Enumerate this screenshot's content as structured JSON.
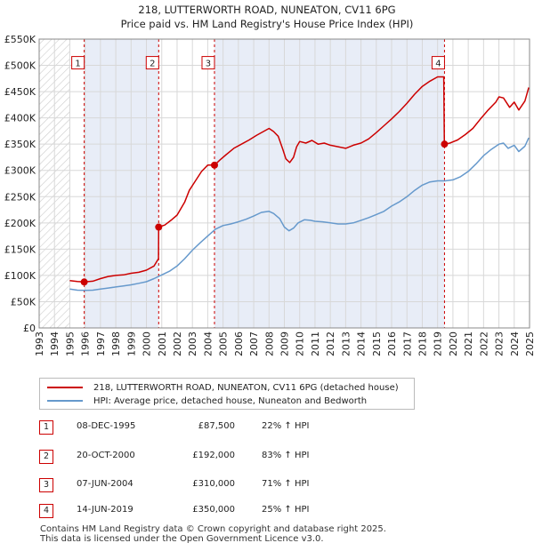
{
  "chart_data": {
    "type": "line",
    "title": "218, LUTTERWORTH ROAD, NUNEATON, CV11 6PG",
    "subtitle": "Price paid vs. HM Land Registry's House Price Index (HPI)",
    "xlim": [
      1993,
      2025
    ],
    "ylim": [
      0,
      550000
    ],
    "x_ticks": [
      "1993",
      "1994",
      "1995",
      "1996",
      "1997",
      "1998",
      "1999",
      "2000",
      "2001",
      "2002",
      "2003",
      "2004",
      "2005",
      "2006",
      "2007",
      "2008",
      "2009",
      "2010",
      "2011",
      "2012",
      "2013",
      "2014",
      "2015",
      "2016",
      "2017",
      "2018",
      "2019",
      "2020",
      "2021",
      "2022",
      "2023",
      "2024",
      "2025"
    ],
    "y_ticks": [
      {
        "value": 0,
        "label": "£0"
      },
      {
        "value": 50000,
        "label": "£50K"
      },
      {
        "value": 100000,
        "label": "£100K"
      },
      {
        "value": 150000,
        "label": "£150K"
      },
      {
        "value": 200000,
        "label": "£200K"
      },
      {
        "value": 250000,
        "label": "£250K"
      },
      {
        "value": 300000,
        "label": "£300K"
      },
      {
        "value": 350000,
        "label": "£350K"
      },
      {
        "value": 400000,
        "label": "£400K"
      },
      {
        "value": 450000,
        "label": "£450K"
      },
      {
        "value": 500000,
        "label": "£500K"
      },
      {
        "value": 550000,
        "label": "£550K"
      }
    ],
    "hatch_before": 1995.0,
    "hatch_after": 2025.0,
    "shaded_bands": [
      [
        1995.94,
        2000.8
      ],
      [
        2004.44,
        2019.45
      ]
    ],
    "series": [
      {
        "name": "218, LUTTERWORTH ROAD, NUNEATON, CV11 6PG (detached house)",
        "color": "#cc0000",
        "points": [
          [
            1995.0,
            90000
          ],
          [
            1995.5,
            88500
          ],
          [
            1995.94,
            87500
          ],
          [
            1996.5,
            89000
          ],
          [
            1997.0,
            94000
          ],
          [
            1997.5,
            98000
          ],
          [
            1998.0,
            100000
          ],
          [
            1998.5,
            101000
          ],
          [
            1999.0,
            104000
          ],
          [
            1999.5,
            106000
          ],
          [
            2000.0,
            110000
          ],
          [
            2000.5,
            118000
          ],
          [
            2000.79,
            132000
          ],
          [
            2000.8,
            192000
          ],
          [
            2001.2,
            196000
          ],
          [
            2001.6,
            205000
          ],
          [
            2002.0,
            215000
          ],
          [
            2002.5,
            240000
          ],
          [
            2002.8,
            262000
          ],
          [
            2003.2,
            280000
          ],
          [
            2003.6,
            298000
          ],
          [
            2004.0,
            310000
          ],
          [
            2004.44,
            310000
          ],
          [
            2004.8,
            320000
          ],
          [
            2005.2,
            330000
          ],
          [
            2005.7,
            342000
          ],
          [
            2006.2,
            350000
          ],
          [
            2006.7,
            358000
          ],
          [
            2007.2,
            367000
          ],
          [
            2007.7,
            375000
          ],
          [
            2008.0,
            380000
          ],
          [
            2008.3,
            374000
          ],
          [
            2008.6,
            365000
          ],
          [
            2008.9,
            340000
          ],
          [
            2009.1,
            322000
          ],
          [
            2009.35,
            315000
          ],
          [
            2009.6,
            325000
          ],
          [
            2009.8,
            345000
          ],
          [
            2010.0,
            355000
          ],
          [
            2010.4,
            352000
          ],
          [
            2010.8,
            357000
          ],
          [
            2011.2,
            350000
          ],
          [
            2011.6,
            352000
          ],
          [
            2012.0,
            348000
          ],
          [
            2012.5,
            345000
          ],
          [
            2013.0,
            342000
          ],
          [
            2013.5,
            348000
          ],
          [
            2014.0,
            352000
          ],
          [
            2014.5,
            360000
          ],
          [
            2015.0,
            372000
          ],
          [
            2015.5,
            385000
          ],
          [
            2016.0,
            398000
          ],
          [
            2016.5,
            412000
          ],
          [
            2017.0,
            428000
          ],
          [
            2017.5,
            445000
          ],
          [
            2018.0,
            460000
          ],
          [
            2018.5,
            470000
          ],
          [
            2019.0,
            478000
          ],
          [
            2019.4,
            478000
          ],
          [
            2019.44,
            350000
          ],
          [
            2019.8,
            352000
          ],
          [
            2020.3,
            358000
          ],
          [
            2020.8,
            368000
          ],
          [
            2021.3,
            380000
          ],
          [
            2021.8,
            398000
          ],
          [
            2022.3,
            415000
          ],
          [
            2022.8,
            430000
          ],
          [
            2023.0,
            440000
          ],
          [
            2023.3,
            438000
          ],
          [
            2023.7,
            420000
          ],
          [
            2024.0,
            430000
          ],
          [
            2024.3,
            415000
          ],
          [
            2024.7,
            432000
          ],
          [
            2024.95,
            458000
          ]
        ]
      },
      {
        "name": "HPI: Average price, detached house, Nuneaton and Bedworth",
        "color": "#6699cc",
        "points": [
          [
            1995.0,
            74000
          ],
          [
            1995.5,
            72000
          ],
          [
            1996.0,
            71500
          ],
          [
            1996.5,
            72000
          ],
          [
            1997.0,
            74000
          ],
          [
            1997.5,
            76000
          ],
          [
            1998.0,
            78000
          ],
          [
            1998.5,
            80000
          ],
          [
            1999.0,
            82000
          ],
          [
            1999.5,
            85000
          ],
          [
            2000.0,
            88000
          ],
          [
            2000.5,
            94000
          ],
          [
            2001.0,
            101000
          ],
          [
            2001.5,
            108000
          ],
          [
            2002.0,
            118000
          ],
          [
            2002.5,
            132000
          ],
          [
            2003.0,
            148000
          ],
          [
            2003.5,
            162000
          ],
          [
            2004.0,
            175000
          ],
          [
            2004.5,
            188000
          ],
          [
            2005.0,
            195000
          ],
          [
            2005.5,
            198000
          ],
          [
            2006.0,
            202000
          ],
          [
            2006.5,
            207000
          ],
          [
            2007.0,
            213000
          ],
          [
            2007.5,
            220000
          ],
          [
            2008.0,
            222000
          ],
          [
            2008.3,
            218000
          ],
          [
            2008.7,
            208000
          ],
          [
            2009.0,
            192000
          ],
          [
            2009.3,
            185000
          ],
          [
            2009.6,
            190000
          ],
          [
            2009.9,
            200000
          ],
          [
            2010.3,
            206000
          ],
          [
            2010.7,
            205000
          ],
          [
            2011.0,
            203000
          ],
          [
            2011.5,
            202000
          ],
          [
            2012.0,
            200000
          ],
          [
            2012.5,
            198000
          ],
          [
            2013.0,
            198000
          ],
          [
            2013.5,
            200000
          ],
          [
            2014.0,
            205000
          ],
          [
            2014.5,
            210000
          ],
          [
            2015.0,
            216000
          ],
          [
            2015.5,
            222000
          ],
          [
            2016.0,
            232000
          ],
          [
            2016.5,
            240000
          ],
          [
            2017.0,
            250000
          ],
          [
            2017.5,
            262000
          ],
          [
            2018.0,
            272000
          ],
          [
            2018.5,
            278000
          ],
          [
            2019.0,
            280000
          ],
          [
            2019.5,
            280000
          ],
          [
            2020.0,
            282000
          ],
          [
            2020.5,
            288000
          ],
          [
            2021.0,
            298000
          ],
          [
            2021.5,
            312000
          ],
          [
            2022.0,
            328000
          ],
          [
            2022.5,
            340000
          ],
          [
            2023.0,
            350000
          ],
          [
            2023.3,
            352000
          ],
          [
            2023.6,
            342000
          ],
          [
            2024.0,
            348000
          ],
          [
            2024.3,
            336000
          ],
          [
            2024.7,
            346000
          ],
          [
            2024.95,
            362000
          ]
        ]
      }
    ],
    "sales": [
      {
        "id": "1",
        "x": 1995.94,
        "price": 87500,
        "date": "08-DEC-1995",
        "price_label": "£87,500",
        "hpi": "22% ↑ HPI"
      },
      {
        "id": "2",
        "x": 2000.8,
        "price": 192000,
        "date": "20-OCT-2000",
        "price_label": "£192,000",
        "hpi": "83% ↑ HPI"
      },
      {
        "id": "3",
        "x": 2004.44,
        "price": 310000,
        "date": "07-JUN-2004",
        "price_label": "£310,000",
        "hpi": "71% ↑ HPI"
      },
      {
        "id": "4",
        "x": 2019.45,
        "price": 350000,
        "date": "14-JUN-2019",
        "price_label": "£350,000",
        "hpi": "25% ↑ HPI"
      }
    ],
    "marker_label_value": 505000
  },
  "legend": {
    "property_label": "218, LUTTERWORTH ROAD, NUNEATON, CV11 6PG (detached house)",
    "hpi_label": "HPI: Average price, detached house, Nuneaton and Bedworth",
    "property_color": "#cc0000",
    "hpi_color": "#6699cc"
  },
  "footer": {
    "line1": "Contains HM Land Registry data © Crown copyright and database right 2025.",
    "line2": "This data is licensed under the Open Government Licence v3.0."
  }
}
